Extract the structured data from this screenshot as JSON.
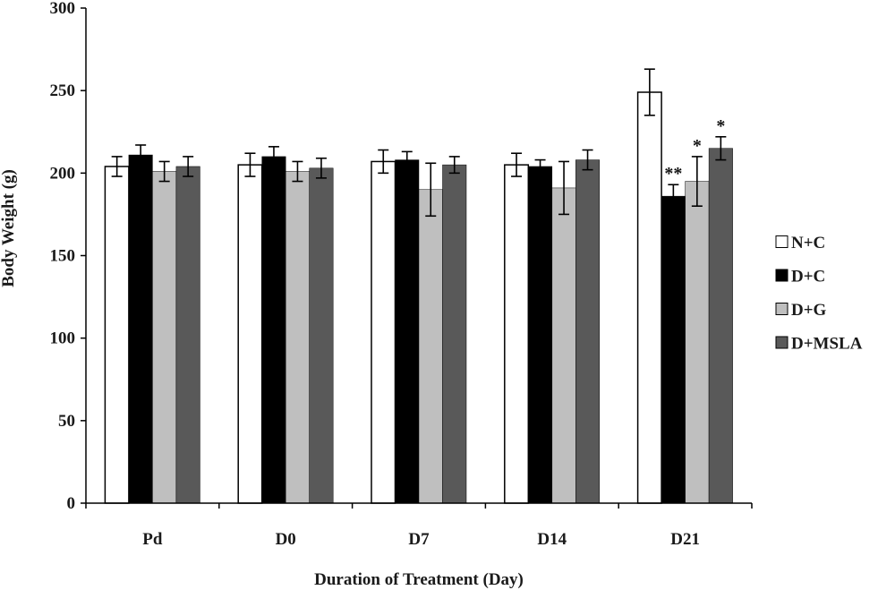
{
  "chart_data": {
    "type": "bar",
    "title": "",
    "xlabel": "Duration of Treatment (Day)",
    "ylabel": "Body Weight (g)",
    "ylim": [
      0,
      300
    ],
    "yticks": [
      0,
      50,
      100,
      150,
      200,
      250,
      300
    ],
    "categories": [
      "Pd",
      "D0",
      "D7",
      "D14",
      "D21"
    ],
    "grid": false,
    "legend_position": "right",
    "series": [
      {
        "name": "N+C",
        "color": "#ffffff",
        "values": [
          204,
          205,
          207,
          205,
          249
        ],
        "errors": [
          6,
          7,
          7,
          7,
          14
        ],
        "annotations": [
          "",
          "",
          "",
          "",
          ""
        ]
      },
      {
        "name": "D+C",
        "color": "#000000",
        "values": [
          211,
          210,
          208,
          204,
          186
        ],
        "errors": [
          6,
          6,
          5,
          4,
          7
        ],
        "annotations": [
          "",
          "",
          "",
          "",
          "**"
        ]
      },
      {
        "name": "D+G",
        "color": "#bfbfbf",
        "values": [
          201,
          201,
          190,
          191,
          195
        ],
        "errors": [
          6,
          6,
          16,
          16,
          15
        ],
        "annotations": [
          "",
          "",
          "",
          "",
          "*"
        ]
      },
      {
        "name": "D+MSLA",
        "color": "#595959",
        "values": [
          204,
          203,
          205,
          208,
          215
        ],
        "errors": [
          6,
          6,
          5,
          6,
          7
        ],
        "annotations": [
          "",
          "",
          "",
          "",
          "*"
        ]
      }
    ]
  }
}
